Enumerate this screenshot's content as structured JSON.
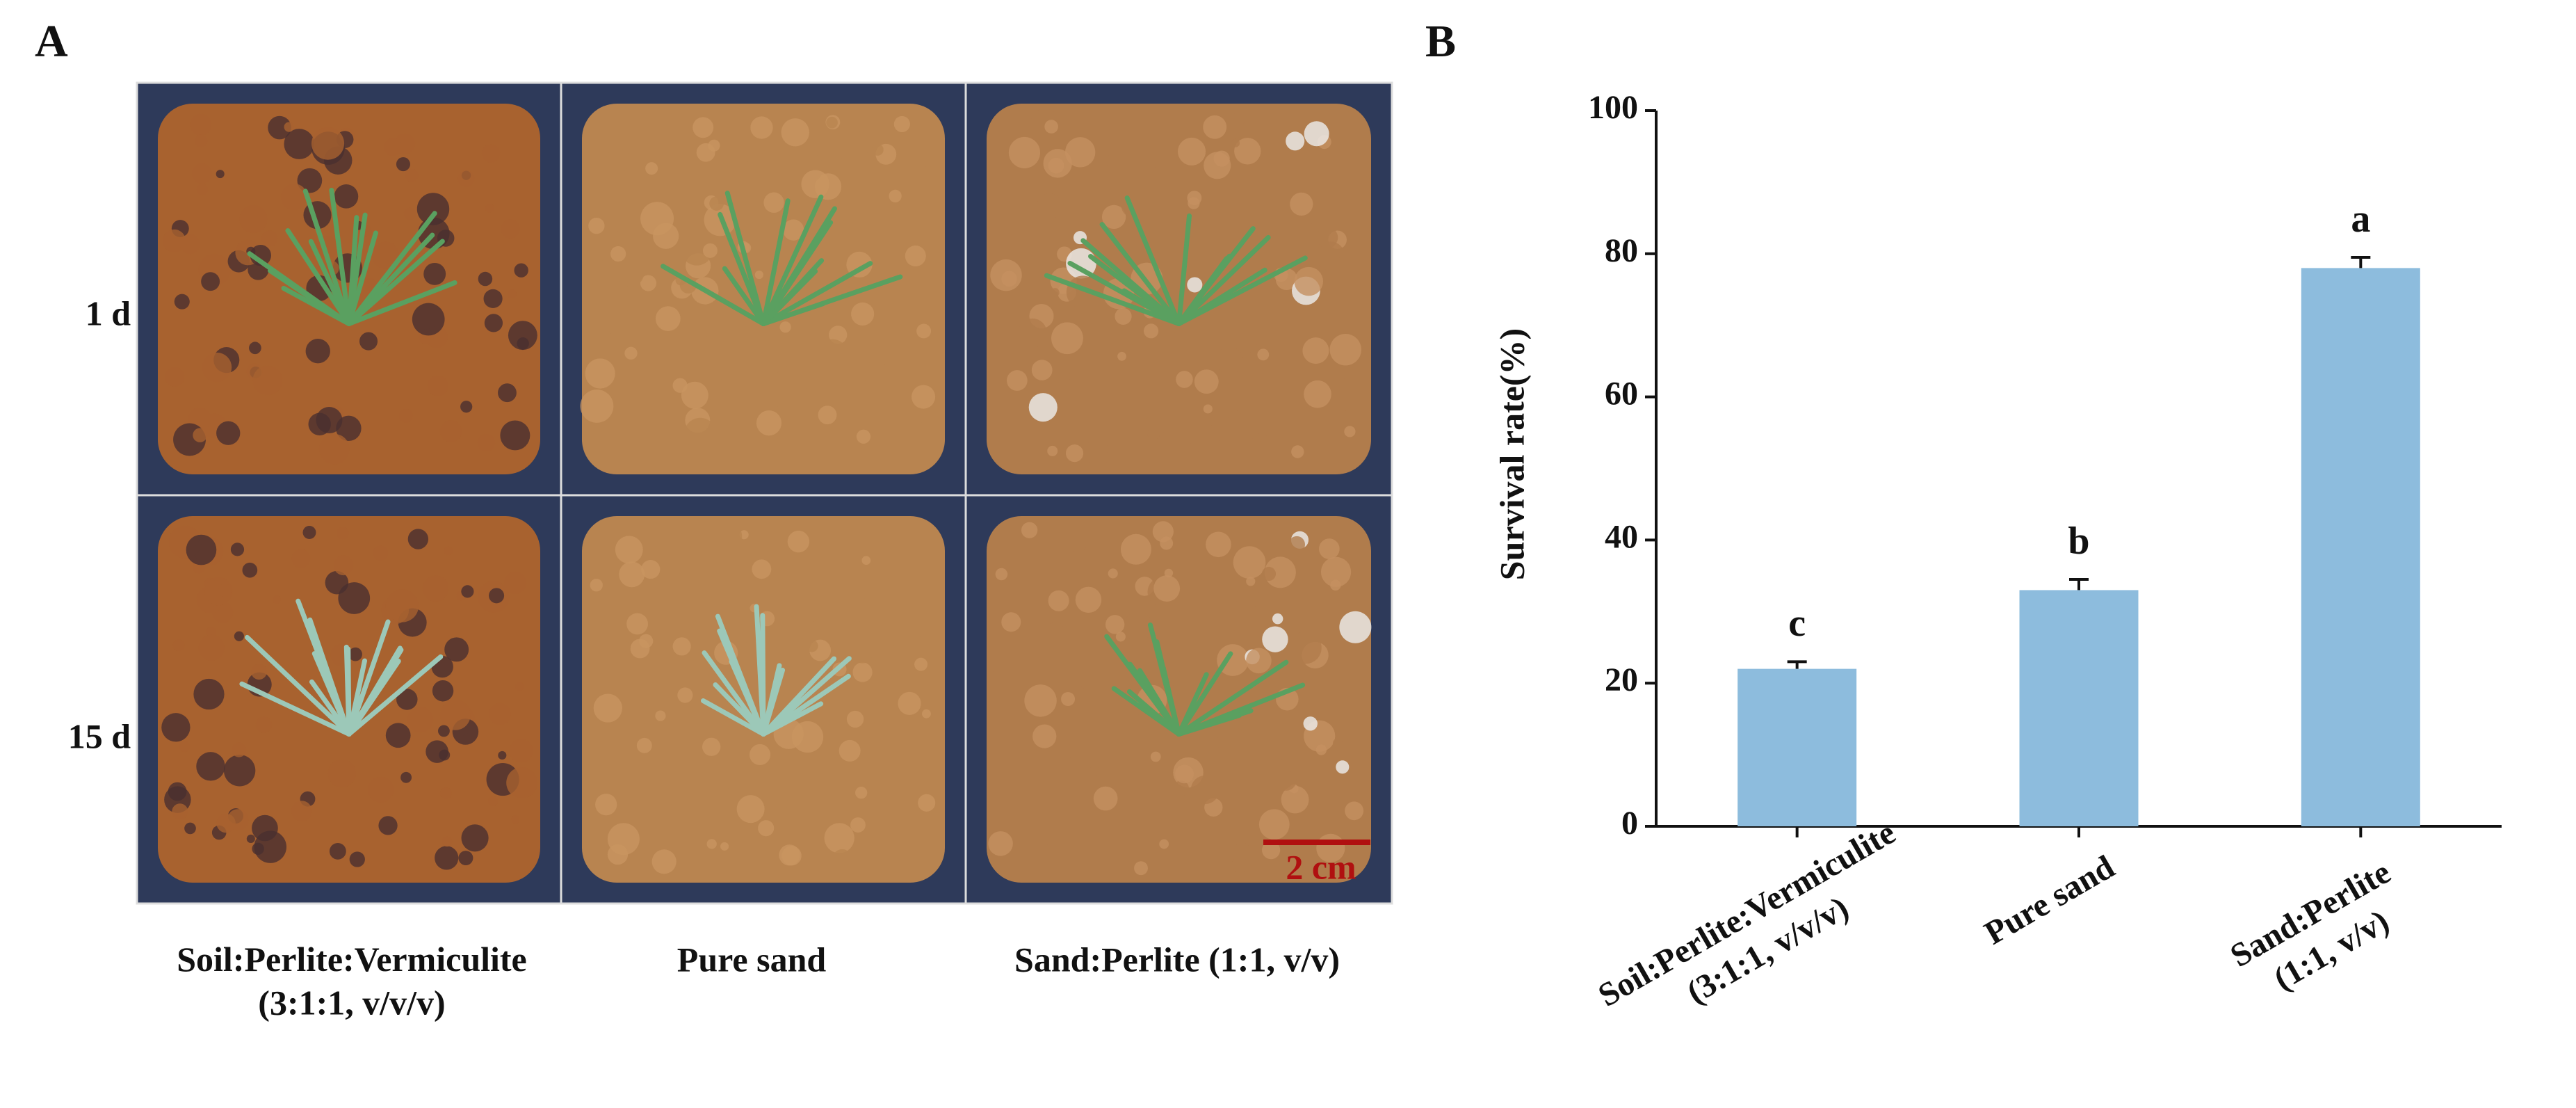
{
  "panel_a": {
    "label": "A",
    "rows": [
      "1 d",
      "15 d"
    ],
    "columns": [
      "Soil:Perlite:Vermiculite\n(3:1:1, v/v/v)",
      "Pure sand",
      "Sand:Perlite (1:1, v/v)"
    ],
    "scale_bar": "2 cm"
  },
  "chart_data": {
    "type": "bar",
    "panel_label": "B",
    "y_label": "Survival rate(%)",
    "categories": [
      "Soil:Perlite:Vermiculite\n(3:1:1, v/v/v)",
      "Pure sand",
      "Sand:Perlite\n(1:1, v/v)"
    ],
    "values": [
      22,
      33,
      78
    ],
    "errors": [
      1,
      1.5,
      1.5
    ],
    "letters": [
      "c",
      "b",
      "a"
    ],
    "color": "#8dbcdd",
    "ylim": [
      0,
      100
    ],
    "yticks": [
      0,
      20,
      40,
      60,
      80,
      100
    ]
  }
}
